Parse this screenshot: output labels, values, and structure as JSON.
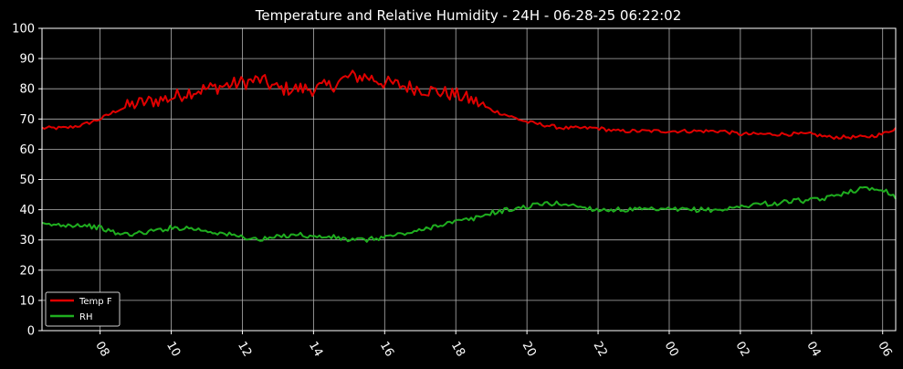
{
  "chart_data": {
    "type": "line",
    "title": "Temperature and Relative Humidity - 24H - 06-28-25 06:22:02",
    "xlabel": "",
    "ylabel": "",
    "ylim": [
      0,
      100
    ],
    "xlim": [
      "06:22",
      "06:22"
    ],
    "yticks": [
      "0",
      "10",
      "20",
      "30",
      "40",
      "50",
      "60",
      "70",
      "80",
      "90",
      "100"
    ],
    "xticks": [
      "08",
      "10",
      "12",
      "14",
      "16",
      "18",
      "20",
      "22",
      "00",
      "02",
      "04",
      "06"
    ],
    "grid": true,
    "legend_position": "bottom-left",
    "background": "#000000",
    "series": [
      {
        "name": "Temp F",
        "color": "#e00000",
        "x": [
          "06:22",
          "07:00",
          "07:30",
          "08:00",
          "08:30",
          "09:00",
          "09:30",
          "10:00",
          "10:30",
          "11:00",
          "11:30",
          "12:00",
          "12:30",
          "13:00",
          "13:30",
          "14:00",
          "14:30",
          "15:00",
          "15:30",
          "16:00",
          "16:30",
          "17:00",
          "17:30",
          "18:00",
          "18:30",
          "19:00",
          "19:30",
          "20:00",
          "20:30",
          "21:00",
          "21:30",
          "22:00",
          "22:30",
          "23:00",
          "23:30",
          "00:00",
          "00:30",
          "01:00",
          "01:30",
          "02:00",
          "02:30",
          "03:00",
          "03:30",
          "04:00",
          "04:30",
          "05:00",
          "05:30",
          "06:00",
          "06:22"
        ],
        "values": [
          67,
          67,
          68,
          70,
          73,
          75,
          76,
          77,
          79,
          80,
          81,
          82,
          83,
          80,
          80,
          80,
          81,
          84,
          84,
          82,
          81,
          80,
          79,
          78,
          76,
          73,
          71,
          69,
          68,
          67,
          67,
          67,
          66,
          66,
          66,
          66,
          66,
          66,
          66,
          65,
          65,
          65,
          65,
          65,
          64,
          64,
          64,
          65,
          67
        ]
      },
      {
        "name": "RH",
        "color": "#1fae1f",
        "x": [
          "06:22",
          "07:00",
          "07:30",
          "08:00",
          "08:30",
          "09:00",
          "09:30",
          "10:00",
          "10:30",
          "11:00",
          "11:30",
          "12:00",
          "12:30",
          "13:00",
          "13:30",
          "14:00",
          "14:30",
          "15:00",
          "15:30",
          "16:00",
          "16:30",
          "17:00",
          "17:30",
          "18:00",
          "18:30",
          "19:00",
          "19:30",
          "20:00",
          "20:30",
          "21:00",
          "21:30",
          "22:00",
          "22:30",
          "23:00",
          "23:30",
          "00:00",
          "00:30",
          "01:00",
          "01:30",
          "02:00",
          "02:30",
          "03:00",
          "03:30",
          "04:00",
          "04:30",
          "05:00",
          "05:30",
          "06:00",
          "06:22"
        ],
        "values": [
          35,
          35,
          35,
          34,
          32,
          32,
          33,
          34,
          34,
          33,
          32,
          31,
          30,
          31,
          32,
          31,
          31,
          30,
          30,
          31,
          32,
          33,
          35,
          36,
          37,
          39,
          40,
          41,
          42,
          42,
          41,
          40,
          40,
          40,
          40,
          40,
          40,
          40,
          40,
          41,
          42,
          42,
          43,
          43,
          44,
          46,
          47,
          47,
          44
        ]
      }
    ]
  }
}
